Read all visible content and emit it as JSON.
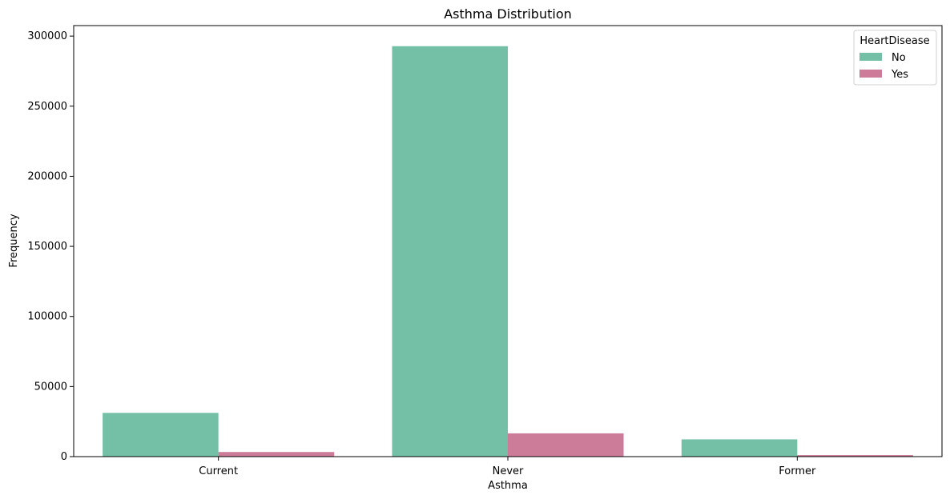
{
  "chart_data": {
    "type": "bar",
    "title": "Asthma Distribution",
    "xlabel": "Asthma",
    "ylabel": "Frequency",
    "categories": [
      "Current",
      "Never",
      "Former"
    ],
    "series": [
      {
        "name": "No",
        "color": "#73c0a6",
        "values": [
          31200,
          292800,
          12300
        ]
      },
      {
        "name": "Yes",
        "color": "#cc7b98",
        "values": [
          3300,
          16600,
          1100
        ]
      }
    ],
    "ylim": [
      0,
      307500
    ],
    "yticks": [
      0,
      50000,
      100000,
      150000,
      200000,
      250000,
      300000
    ],
    "ytick_labels": [
      "0",
      "50000",
      "100000",
      "150000",
      "200000",
      "250000",
      "300000"
    ],
    "legend": {
      "title": "HeartDisease",
      "position": "top-right"
    },
    "grid": false
  }
}
